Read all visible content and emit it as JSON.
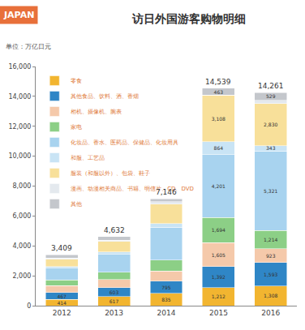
{
  "chart_data": {
    "type": "bar",
    "title": "访日外国游客购物明细",
    "subtitle": "单位：万亿日元",
    "annotations": [
      "JAPAN"
    ],
    "stacked": true,
    "data_labels": true,
    "grid": false,
    "legend": "top-left",
    "categories": [
      "2012",
      "2013",
      "2014",
      "2015",
      "2016"
    ],
    "totals": [
      3409,
      4632,
      7146,
      14539,
      14261
    ],
    "total_labels": [
      "3,409",
      "4,632",
      "7,146",
      "14,539",
      "14,261"
    ],
    "ylim": [
      0,
      16000
    ],
    "yticks": [
      0,
      {
        "value": 2000,
        "label": "2,000"
      },
      {
        "value": 4000,
        "label": "4,000"
      },
      {
        "value": 6000,
        "label": "6,000"
      },
      {
        "value": 8000,
        "label": "8,000"
      },
      {
        "value": 10000,
        "label": "10,000"
      },
      {
        "value": 12000,
        "label": "12,000"
      },
      {
        "value": 14000,
        "label": "14,000"
      },
      {
        "value": 16000,
        "label": "16,000"
      }
    ],
    "series": [
      {
        "name": "零食",
        "color": "#f2b530",
        "values": [
          414,
          617,
          835,
          1212,
          1308
        ],
        "value_labels": [
          "414",
          "617",
          "835",
          "1,212",
          "1,308"
        ]
      },
      {
        "name": "其他食品、饮料、酒、香烟",
        "color": "#2f86c6",
        "values": [
          467,
          603,
          795,
          1392,
          1593
        ],
        "value_labels": [
          "467",
          "603",
          "795",
          "1,392",
          "1,593"
        ]
      },
      {
        "name": "相机、摄像机、腕表",
        "color": "#f5c9aa",
        "values": [
          450,
          520,
          700,
          1605,
          923
        ],
        "value_labels": [
          null,
          null,
          null,
          "1,605",
          "923"
        ]
      },
      {
        "name": "家电",
        "color": "#8ccf86",
        "values": [
          380,
          500,
          720,
          1694,
          1214
        ],
        "value_labels": [
          null,
          null,
          null,
          "1,694",
          "1,214"
        ]
      },
      {
        "name": "化妆品、香水、医药品、保健品、化妆用具",
        "color": "#a8d3ef",
        "values": [
          800,
          1200,
          2200,
          4201,
          5321
        ],
        "value_labels": [
          null,
          null,
          null,
          "4,201",
          "5,321"
        ]
      },
      {
        "name": "和服、工艺品",
        "color": "#c9e4f5",
        "values": [
          100,
          150,
          250,
          864,
          343
        ],
        "value_labels": [
          null,
          null,
          null,
          "864",
          "343"
        ]
      },
      {
        "name": "服装（和服以外）、包袋、鞋子",
        "color": "#f8e09a",
        "values": [
          500,
          700,
          1300,
          3108,
          2830
        ],
        "value_labels": [
          null,
          null,
          null,
          "3,108",
          "2,830"
        ]
      },
      {
        "name": "漫画、动漫相关商品、书籍、明信片、CD、DVD",
        "color": "#e4e9ee",
        "values": [
          80,
          100,
          150,
          0,
          200
        ],
        "value_labels": [
          null,
          null,
          null,
          null,
          null
        ]
      },
      {
        "name": "其他",
        "color": "#c4c7cc",
        "values": [
          218,
          242,
          196,
          463,
          529
        ],
        "value_labels": [
          null,
          null,
          null,
          "463",
          "529"
        ]
      }
    ]
  }
}
